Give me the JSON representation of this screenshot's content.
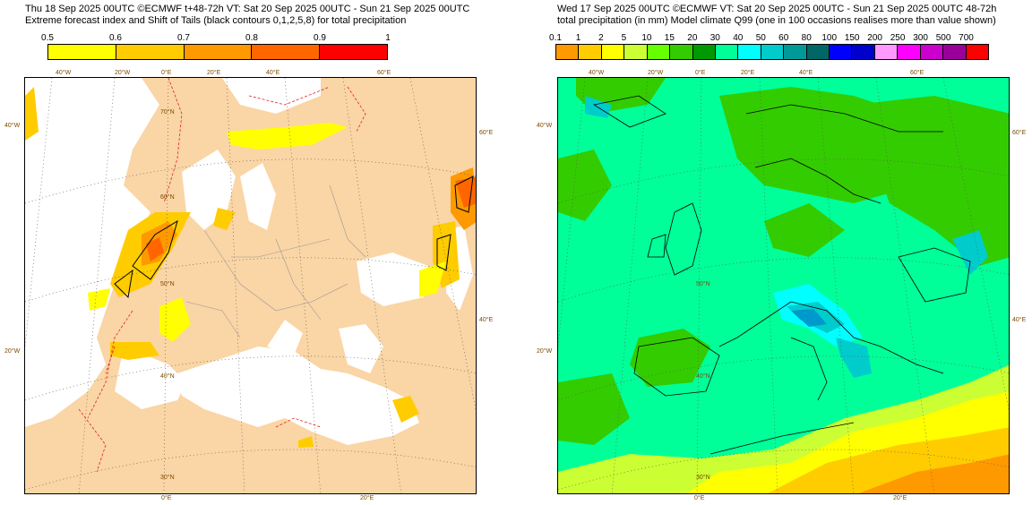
{
  "left": {
    "title_line1": "Thu 18 Sep 2025 00UTC ©ECMWF t+48-72h  VT: Sat 20 Sep 2025 00UTC - Sun 21 Sep 2025 00UTC",
    "title_line2": "Extreme forecast index and Shift of Tails (black contours 0,1,2,5,8) for total precipitation",
    "colorbar": {
      "ticks": [
        "0.5",
        "0.6",
        "0.7",
        "0.8",
        "0.9",
        "1"
      ],
      "colors": [
        "#ffff00",
        "#ffcc00",
        "#ff9900",
        "#ff6600",
        "#ff0000"
      ]
    },
    "map": {
      "land_color": "#fad5a5",
      "sea_color": "#ffffff",
      "contour_label": "0.3",
      "lon_labels": [
        "40°W",
        "20°W",
        "0°E",
        "20°E",
        "40°E",
        "60°E"
      ],
      "lon_labels_bottom": [
        "0°E",
        "20°E"
      ],
      "lat_labels": [
        "70°N",
        "60°N",
        "50°N",
        "40°N",
        "30°N"
      ],
      "edge_labels": [
        "40°W",
        "20°W",
        "60°E",
        "40°E",
        "50°N"
      ]
    }
  },
  "right": {
    "title_line1": "Wed 17 Sep 2025 00UTC ©ECMWF VT: Sat 20 Sep 2025 00UTC - Sun 21 Sep 2025 00UTC   48-72h",
    "title_line2": "total precipitation (in mm)  Model climate Q99 (one in 100 occasions realises more than value shown)",
    "colorbar": {
      "ticks": [
        "0.1",
        "1",
        "2",
        "5",
        "10",
        "15",
        "20",
        "30",
        "40",
        "50",
        "60",
        "80",
        "100",
        "150",
        "200",
        "250",
        "300",
        "500",
        "700"
      ],
      "colors": [
        "#ff9900",
        "#ffcc00",
        "#ffff00",
        "#ccff33",
        "#66ff00",
        "#33cc00",
        "#009900",
        "#00ff99",
        "#00ffff",
        "#00cccc",
        "#009999",
        "#006666",
        "#0000ff",
        "#0000cc",
        "#ff99ff",
        "#ff00ff",
        "#cc00cc",
        "#990099",
        "#ff0000"
      ]
    },
    "map": {
      "lon_labels": [
        "40°W",
        "20°W",
        "0°E",
        "20°E",
        "40°E",
        "60°E"
      ],
      "lon_labels_bottom": [
        "0°E",
        "20°E"
      ],
      "lat_labels": [
        "50°N",
        "40°N",
        "30°N"
      ],
      "edge_labels": [
        "40°W",
        "20°W",
        "60°E",
        "40°E"
      ]
    }
  }
}
